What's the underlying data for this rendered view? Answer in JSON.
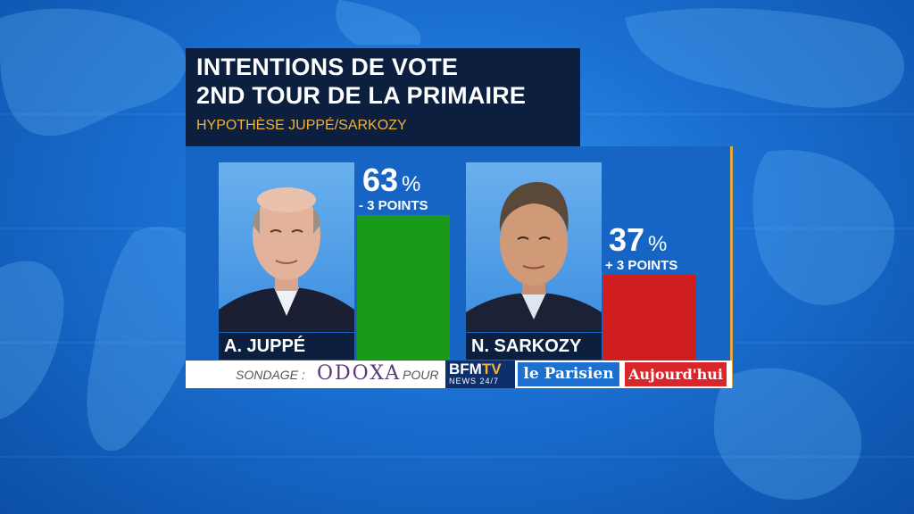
{
  "header": {
    "title_line1": "INTENTIONS DE VOTE",
    "title_line2": "2ND TOUR DE LA PRIMAIRE",
    "subtitle": "HYPOTHÈSE JUPPÉ/SARKOZY"
  },
  "colors": {
    "juppe_bar": "#1a9a1a",
    "sarkozy_bar": "#d01e1e",
    "panel": "#1665c4",
    "title_bg": "#0c1f3f",
    "subtitle": "#f0b23a"
  },
  "chart_data": {
    "type": "bar",
    "categories": [
      "A. JUPPÉ",
      "N. SARKOZY"
    ],
    "values": [
      63,
      37
    ],
    "value_suffix": "%",
    "changes": [
      "- 3 POINTS",
      "+ 3 POINTS"
    ],
    "ylim": [
      0,
      100
    ],
    "grid": false
  },
  "footer": {
    "poll_label": "SONDAGE :",
    "pollster": "ODOXA",
    "for_label": "POUR",
    "logo_bfm_top": "BFM",
    "logo_bfm_tv": "TV",
    "logo_bfm_bottom": "NEWS 24/7",
    "logo_parisien": "le Parisien",
    "logo_aujourdhui": "Aujourd'hui"
  }
}
